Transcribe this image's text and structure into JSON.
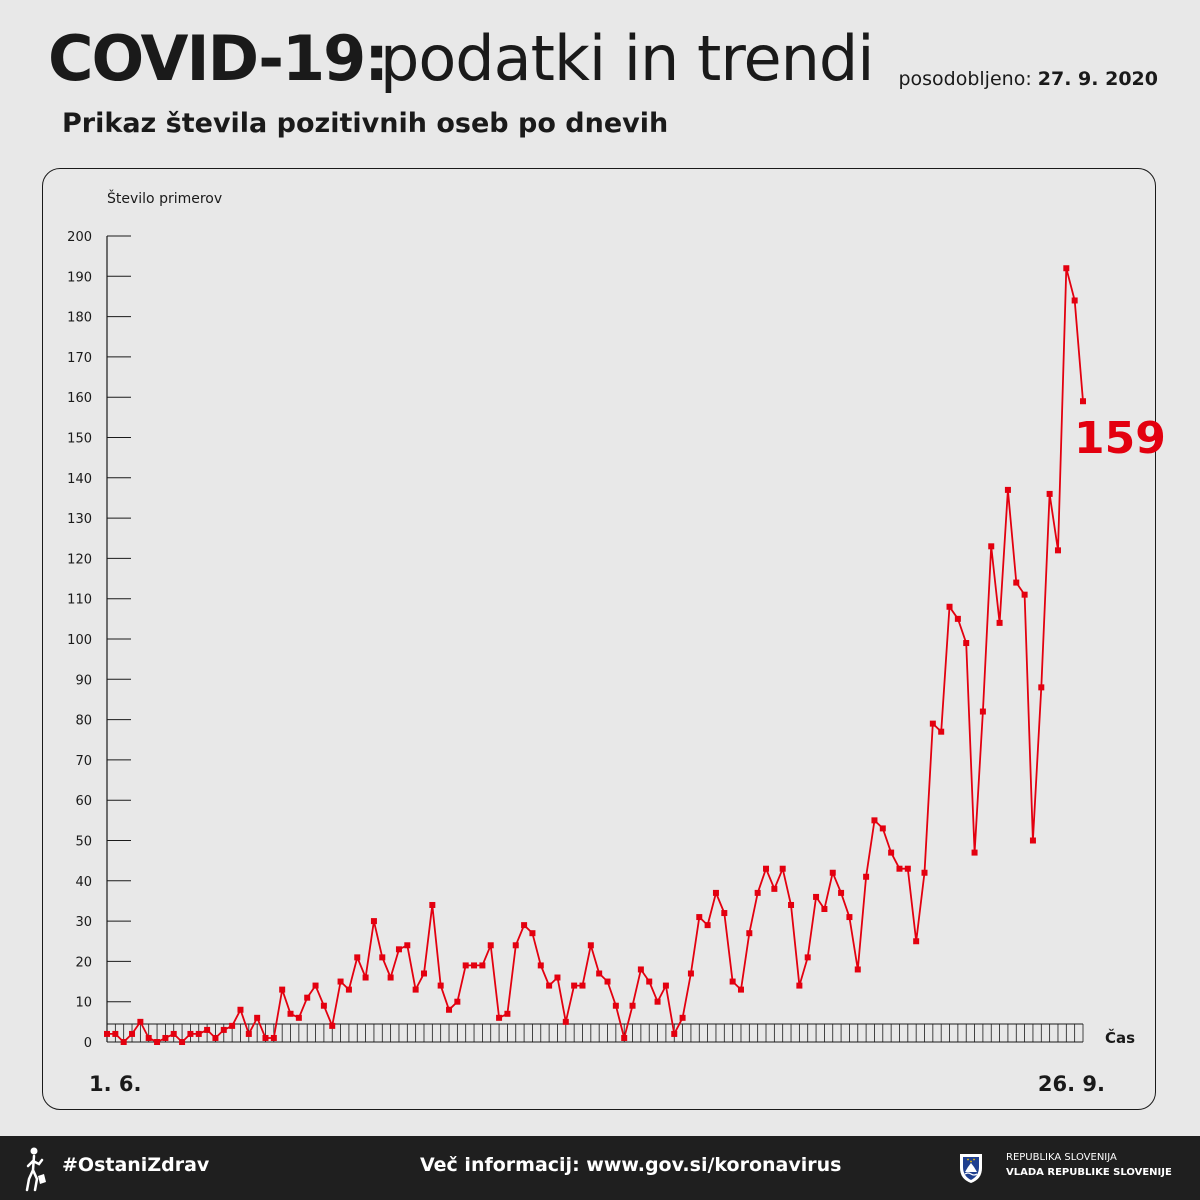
{
  "header": {
    "title_bold": "COVID-19:",
    "title_light": "podatki in trendi",
    "updated_label": "posodobljeno:",
    "updated_date": "27. 9. 2020",
    "subtitle": "Prikaz števila pozitivnih oseb po dnevih"
  },
  "chart_data": {
    "type": "line",
    "title": "Prikaz števila pozitivnih oseb po dnevih",
    "ylabel": "Število primerov",
    "xlabel": "Čas",
    "ylim": [
      0,
      200
    ],
    "yticks": [
      0,
      10,
      20,
      30,
      40,
      50,
      60,
      70,
      80,
      90,
      100,
      110,
      120,
      130,
      140,
      150,
      160,
      170,
      180,
      190,
      200
    ],
    "x_start_label": "1. 6.",
    "x_end_label": "26. 9.",
    "last_value_label": "159",
    "grid": false,
    "series": [
      {
        "color": "#e3000f",
        "values": [
          2,
          2,
          0,
          2,
          5,
          1,
          0,
          1,
          2,
          0,
          2,
          2,
          3,
          1,
          3,
          4,
          8,
          2,
          6,
          1,
          1,
          13,
          7,
          6,
          11,
          14,
          9,
          4,
          15,
          13,
          21,
          16,
          30,
          21,
          16,
          23,
          24,
          13,
          17,
          34,
          14,
          8,
          10,
          19,
          19,
          19,
          24,
          6,
          7,
          24,
          29,
          27,
          19,
          14,
          16,
          5,
          14,
          14,
          24,
          17,
          15,
          9,
          1,
          9,
          18,
          15,
          10,
          14,
          2,
          6,
          17,
          31,
          29,
          37,
          32,
          15,
          13,
          27,
          37,
          43,
          38,
          43,
          34,
          14,
          21,
          36,
          33,
          42,
          37,
          31,
          18,
          41,
          55,
          53,
          47,
          43,
          43,
          25,
          42,
          79,
          77,
          108,
          105,
          99,
          47,
          82,
          123,
          104,
          137,
          114,
          111,
          50,
          88,
          136,
          122,
          192,
          184,
          159
        ]
      }
    ]
  },
  "footer": {
    "hashtag": "#OstaniZdrav",
    "more_info": "Več informacij: www.gov.si/koronavirus",
    "gov_line1": "REPUBLIKA SLOVENIJA",
    "gov_line2": "VLADA REPUBLIKE SLOVENIJE"
  }
}
